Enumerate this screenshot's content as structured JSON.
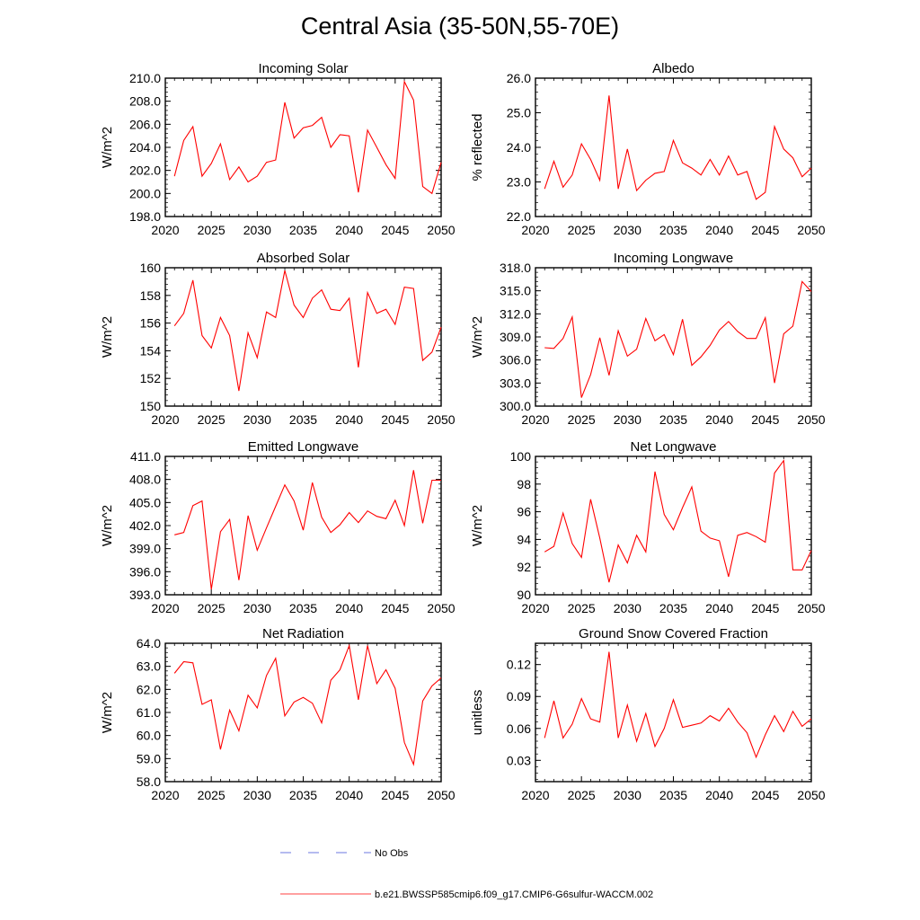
{
  "figure": {
    "title": "Central Asia (35-50N,55-70E)",
    "legend": {
      "obs_label": "No Obs",
      "model_label": "b.e21.BWSSP585cmip6.f09_g17.CMIP6-G6sulfur-WACCM.002",
      "model_color": "#ff0000",
      "obs_color": "#3b4bd6"
    }
  },
  "chart_data": [
    {
      "type": "line",
      "title": "Incoming Solar",
      "ylabel": "W/m^2",
      "xlim": [
        2020,
        2050
      ],
      "ylim": [
        198,
        210
      ],
      "xticks": [
        "2020",
        "2025",
        "2030",
        "2035",
        "2040",
        "2045",
        "2050"
      ],
      "yticks": [
        "198.0",
        "200.0",
        "202.0",
        "204.0",
        "206.0",
        "208.0",
        "210.0"
      ],
      "x": [
        2021,
        2022,
        2023,
        2024,
        2025,
        2026,
        2027,
        2028,
        2029,
        2030,
        2031,
        2032,
        2033,
        2034,
        2035,
        2036,
        2037,
        2038,
        2039,
        2040,
        2041,
        2042,
        2043,
        2044,
        2045,
        2046,
        2047,
        2048,
        2049,
        2050
      ],
      "series": [
        {
          "values": [
            201.5,
            204.6,
            205.8,
            201.5,
            202.6,
            204.3,
            201.2,
            202.3,
            201.0,
            201.5,
            202.7,
            202.9,
            207.9,
            204.8,
            205.7,
            205.9,
            206.6,
            204.0,
            205.1,
            205.0,
            200.1,
            205.5,
            204.0,
            202.5,
            201.3,
            209.7,
            208.1,
            200.6,
            200.0,
            202.7
          ]
        }
      ]
    },
    {
      "type": "line",
      "title": "Albedo",
      "ylabel": "% reflected",
      "xlim": [
        2020,
        2050
      ],
      "ylim": [
        22,
        26
      ],
      "xticks": [
        "2020",
        "2025",
        "2030",
        "2035",
        "2040",
        "2045",
        "2050"
      ],
      "yticks": [
        "22.0",
        "23.0",
        "24.0",
        "25.0",
        "26.0"
      ],
      "x": [
        2021,
        2022,
        2023,
        2024,
        2025,
        2026,
        2027,
        2028,
        2029,
        2030,
        2031,
        2032,
        2033,
        2034,
        2035,
        2036,
        2037,
        2038,
        2039,
        2040,
        2041,
        2042,
        2043,
        2044,
        2045,
        2046,
        2047,
        2048,
        2049,
        2050
      ],
      "series": [
        {
          "values": [
            22.8,
            23.6,
            22.85,
            23.2,
            24.1,
            23.65,
            23.05,
            25.5,
            22.8,
            23.95,
            22.75,
            23.05,
            23.25,
            23.3,
            24.2,
            23.55,
            23.4,
            23.2,
            23.65,
            23.2,
            23.75,
            23.2,
            23.3,
            22.5,
            22.7,
            24.6,
            23.95,
            23.7,
            23.15,
            23.4
          ]
        }
      ]
    },
    {
      "type": "line",
      "title": "Absorbed Solar",
      "ylabel": "W/m^2",
      "xlim": [
        2020,
        2050
      ],
      "ylim": [
        150,
        160
      ],
      "xticks": [
        "2020",
        "2025",
        "2030",
        "2035",
        "2040",
        "2045",
        "2050"
      ],
      "yticks": [
        "150",
        "152",
        "154",
        "156",
        "158",
        "160"
      ],
      "x": [
        2021,
        2022,
        2023,
        2024,
        2025,
        2026,
        2027,
        2028,
        2029,
        2030,
        2031,
        2032,
        2033,
        2034,
        2035,
        2036,
        2037,
        2038,
        2039,
        2040,
        2041,
        2042,
        2043,
        2044,
        2045,
        2046,
        2047,
        2048,
        2049,
        2050
      ],
      "series": [
        {
          "values": [
            155.8,
            156.7,
            159.1,
            155.1,
            154.2,
            156.4,
            155.1,
            151.1,
            155.3,
            153.5,
            156.8,
            156.4,
            159.8,
            157.3,
            156.4,
            157.8,
            158.4,
            157.0,
            156.9,
            157.8,
            152.8,
            158.2,
            156.7,
            157.0,
            155.9,
            158.6,
            158.5,
            153.3,
            153.9,
            155.7
          ]
        }
      ]
    },
    {
      "type": "line",
      "title": "Incoming Longwave",
      "ylabel": "W/m^2",
      "xlim": [
        2020,
        2050
      ],
      "ylim": [
        300,
        318
      ],
      "xticks": [
        "2020",
        "2025",
        "2030",
        "2035",
        "2040",
        "2045",
        "2050"
      ],
      "yticks": [
        "300.0",
        "303.0",
        "306.0",
        "309.0",
        "312.0",
        "315.0",
        "318.0"
      ],
      "x": [
        2021,
        2022,
        2023,
        2024,
        2025,
        2026,
        2027,
        2028,
        2029,
        2030,
        2031,
        2032,
        2033,
        2034,
        2035,
        2036,
        2037,
        2038,
        2039,
        2040,
        2041,
        2042,
        2043,
        2044,
        2045,
        2046,
        2047,
        2048,
        2049,
        2050
      ],
      "series": [
        {
          "values": [
            307.6,
            307.5,
            308.8,
            311.6,
            301.1,
            304.1,
            308.9,
            304.0,
            309.8,
            306.5,
            307.4,
            311.4,
            308.5,
            309.3,
            306.7,
            311.3,
            305.3,
            306.4,
            307.9,
            309.9,
            311.0,
            309.7,
            308.8,
            308.8,
            311.5,
            303.0,
            309.4,
            310.4,
            316.2,
            314.9
          ]
        }
      ]
    },
    {
      "type": "line",
      "title": "Emitted Longwave",
      "ylabel": "W/m^2",
      "xlim": [
        2020,
        2050
      ],
      "ylim": [
        393,
        411
      ],
      "xticks": [
        "2020",
        "2025",
        "2030",
        "2035",
        "2040",
        "2045",
        "2050"
      ],
      "yticks": [
        "393.0",
        "396.0",
        "399.0",
        "402.0",
        "405.0",
        "408.0",
        "411.0"
      ],
      "x": [
        2021,
        2022,
        2023,
        2024,
        2025,
        2026,
        2027,
        2028,
        2029,
        2030,
        2031,
        2032,
        2033,
        2034,
        2035,
        2036,
        2037,
        2038,
        2039,
        2040,
        2041,
        2042,
        2043,
        2044,
        2045,
        2046,
        2047,
        2048,
        2049,
        2050
      ],
      "series": [
        {
          "values": [
            400.8,
            401.1,
            404.6,
            405.2,
            393.7,
            401.2,
            402.8,
            394.9,
            403.3,
            398.8,
            401.7,
            404.5,
            407.3,
            405.2,
            401.4,
            407.6,
            403.1,
            401.1,
            402.1,
            403.7,
            402.4,
            403.9,
            403.2,
            402.9,
            405.3,
            402.0,
            409.2,
            402.3,
            407.9,
            407.9
          ]
        }
      ]
    },
    {
      "type": "line",
      "title": "Net Longwave",
      "ylabel": "W/m^2",
      "xlim": [
        2020,
        2050
      ],
      "ylim": [
        90,
        100
      ],
      "xticks": [
        "2020",
        "2025",
        "2030",
        "2035",
        "2040",
        "2045",
        "2050"
      ],
      "yticks": [
        "90",
        "92",
        "94",
        "96",
        "98",
        "100"
      ],
      "x": [
        2021,
        2022,
        2023,
        2024,
        2025,
        2026,
        2027,
        2028,
        2029,
        2030,
        2031,
        2032,
        2033,
        2034,
        2035,
        2036,
        2037,
        2038,
        2039,
        2040,
        2041,
        2042,
        2043,
        2044,
        2045,
        2046,
        2047,
        2048,
        2049,
        2050
      ],
      "series": [
        {
          "values": [
            93.1,
            93.5,
            95.9,
            93.7,
            92.7,
            96.9,
            94.1,
            90.9,
            93.6,
            92.3,
            94.3,
            93.1,
            98.9,
            95.8,
            94.7,
            96.3,
            97.8,
            94.6,
            94.1,
            93.9,
            91.3,
            94.3,
            94.5,
            94.2,
            93.8,
            98.8,
            99.7,
            91.8,
            91.8,
            93.2
          ]
        }
      ]
    },
    {
      "type": "line",
      "title": "Net Radiation",
      "ylabel": "W/m^2",
      "xlim": [
        2020,
        2050
      ],
      "ylim": [
        58,
        64
      ],
      "xticks": [
        "2020",
        "2025",
        "2030",
        "2035",
        "2040",
        "2045",
        "2050"
      ],
      "yticks": [
        "58.0",
        "59.0",
        "60.0",
        "61.0",
        "62.0",
        "63.0",
        "64.0"
      ],
      "x": [
        2021,
        2022,
        2023,
        2024,
        2025,
        2026,
        2027,
        2028,
        2029,
        2030,
        2031,
        2032,
        2033,
        2034,
        2035,
        2036,
        2037,
        2038,
        2039,
        2040,
        2041,
        2042,
        2043,
        2044,
        2045,
        2046,
        2047,
        2048,
        2049,
        2050
      ],
      "series": [
        {
          "values": [
            62.7,
            63.2,
            63.15,
            61.35,
            61.55,
            59.4,
            61.1,
            60.2,
            61.75,
            61.2,
            62.6,
            63.35,
            60.85,
            61.45,
            61.65,
            61.4,
            60.55,
            62.4,
            62.85,
            63.9,
            61.55,
            63.9,
            62.25,
            62.85,
            62.05,
            59.7,
            58.75,
            61.5,
            62.15,
            62.5
          ]
        }
      ]
    },
    {
      "type": "line",
      "title": "Ground Snow Covered Fraction",
      "ylabel": "unitless",
      "xlim": [
        2020,
        2050
      ],
      "ylim": [
        0.01,
        0.14
      ],
      "xticks": [
        "2020",
        "2025",
        "2030",
        "2035",
        "2040",
        "2045",
        "2050"
      ],
      "yticks": [
        "0.03",
        "0.06",
        "0.09",
        "0.12"
      ],
      "ytick_values": [
        0.03,
        0.06,
        0.09,
        0.12
      ],
      "x": [
        2021,
        2022,
        2023,
        2024,
        2025,
        2026,
        2027,
        2028,
        2029,
        2030,
        2031,
        2032,
        2033,
        2034,
        2035,
        2036,
        2037,
        2038,
        2039,
        2040,
        2041,
        2042,
        2043,
        2044,
        2045,
        2046,
        2047,
        2048,
        2049,
        2050
      ],
      "series": [
        {
          "values": [
            0.051,
            0.086,
            0.051,
            0.064,
            0.088,
            0.069,
            0.066,
            0.132,
            0.051,
            0.082,
            0.048,
            0.074,
            0.043,
            0.06,
            0.087,
            0.061,
            0.063,
            0.065,
            0.072,
            0.067,
            0.079,
            0.066,
            0.056,
            0.033,
            0.054,
            0.072,
            0.057,
            0.076,
            0.062,
            0.069
          ]
        }
      ]
    }
  ]
}
